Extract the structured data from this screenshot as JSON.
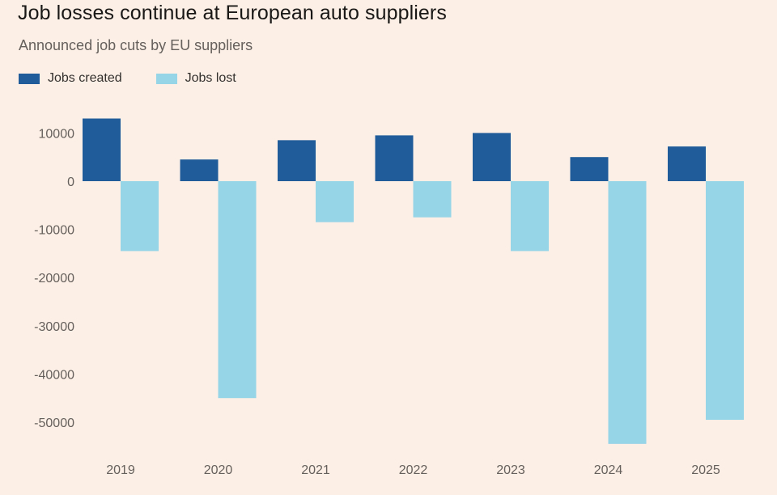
{
  "title": "Job losses continue at European auto suppliers",
  "subtitle": "Announced job cuts by EU suppliers",
  "legend": [
    {
      "label": "Jobs created",
      "color": "#1f5c99"
    },
    {
      "label": "Jobs lost",
      "color": "#96d4e8"
    }
  ],
  "chart_data": {
    "type": "bar",
    "title": "Job losses continue at European auto suppliers",
    "subtitle": "Announced job cuts by EU suppliers",
    "xlabel": "",
    "ylabel": "",
    "categories": [
      "2019",
      "2020",
      "2021",
      "2022",
      "2023",
      "2024",
      "2025"
    ],
    "series": [
      {
        "name": "Jobs created",
        "color": "#1f5c99",
        "values": [
          13000,
          4500,
          8500,
          9500,
          10000,
          5000,
          7200
        ]
      },
      {
        "name": "Jobs lost",
        "color": "#96d4e8",
        "values": [
          -14500,
          -45000,
          -8500,
          -7500,
          -14500,
          -54500,
          -49500
        ]
      }
    ],
    "yticks": [
      10000,
      0,
      -10000,
      -20000,
      -30000,
      -40000,
      -50000
    ],
    "ylim": [
      -57000,
      15000
    ],
    "grid": false,
    "legend_position": "top-left"
  }
}
